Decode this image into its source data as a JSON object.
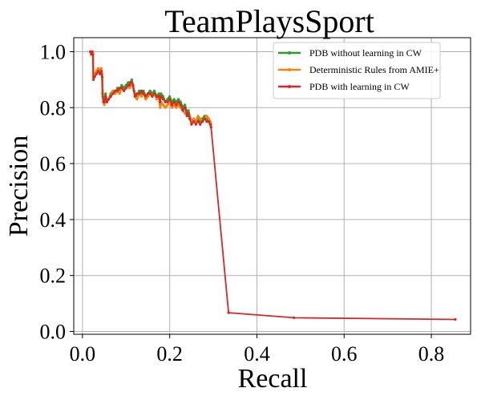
{
  "chart_data": {
    "type": "line",
    "title": "TeamPlaysSport",
    "xlabel": "Recall",
    "ylabel": "Precision",
    "xlim": [
      -0.02,
      0.89
    ],
    "ylim": [
      -0.01,
      1.05
    ],
    "x_ticks": [
      0.0,
      0.2,
      0.4,
      0.6,
      0.8
    ],
    "y_ticks": [
      0.0,
      0.2,
      0.4,
      0.6,
      0.8,
      1.0
    ],
    "x_tick_labels": [
      "0.0",
      "0.2",
      "0.4",
      "0.6",
      "0.8"
    ],
    "y_tick_labels": [
      "0.0",
      "0.2",
      "0.4",
      "0.6",
      "0.8",
      "1.0"
    ],
    "grid": true,
    "legend_position": "top-right",
    "series": [
      {
        "name": "PDB without learning in CW",
        "color": "#2ca02c",
        "x": [
          0.018,
          0.02,
          0.022,
          0.024,
          0.025,
          0.028,
          0.032,
          0.036,
          0.04,
          0.043,
          0.045,
          0.046,
          0.048,
          0.05,
          0.053,
          0.056,
          0.06,
          0.065,
          0.07,
          0.075,
          0.08,
          0.085,
          0.09,
          0.095,
          0.1,
          0.105,
          0.108,
          0.11,
          0.113,
          0.116,
          0.118,
          0.12,
          0.125,
          0.13,
          0.135,
          0.14,
          0.145,
          0.15,
          0.155,
          0.16,
          0.165,
          0.17,
          0.175,
          0.178,
          0.18,
          0.185,
          0.19,
          0.195,
          0.2,
          0.205,
          0.21,
          0.215,
          0.22,
          0.225,
          0.23,
          0.235,
          0.24,
          0.243,
          0.246,
          0.25,
          0.255,
          0.26,
          0.265,
          0.27,
          0.275,
          0.28,
          0.285,
          0.29,
          0.293,
          0.295
        ],
        "y": [
          1.0,
          1.0,
          0.99,
          1.0,
          0.91,
          0.92,
          0.93,
          0.94,
          0.93,
          0.94,
          0.92,
          0.86,
          0.82,
          0.83,
          0.85,
          0.82,
          0.83,
          0.85,
          0.86,
          0.85,
          0.87,
          0.86,
          0.88,
          0.87,
          0.88,
          0.89,
          0.88,
          0.89,
          0.9,
          0.88,
          0.86,
          0.85,
          0.84,
          0.86,
          0.85,
          0.86,
          0.84,
          0.85,
          0.86,
          0.85,
          0.86,
          0.84,
          0.85,
          0.83,
          0.85,
          0.84,
          0.82,
          0.83,
          0.84,
          0.82,
          0.83,
          0.82,
          0.83,
          0.82,
          0.8,
          0.81,
          0.78,
          0.79,
          0.77,
          0.75,
          0.76,
          0.75,
          0.76,
          0.75,
          0.76,
          0.77,
          0.76,
          0.75,
          0.74,
          0.73
        ]
      },
      {
        "name": "Deterministic Rules from AMIE+",
        "color": "#ff7f0e",
        "x": [
          0.018,
          0.02,
          0.022,
          0.024,
          0.025,
          0.028,
          0.032,
          0.036,
          0.04,
          0.043,
          0.045,
          0.046,
          0.048,
          0.05,
          0.053,
          0.056,
          0.06,
          0.065,
          0.07,
          0.075,
          0.08,
          0.085,
          0.09,
          0.095,
          0.1,
          0.105,
          0.108,
          0.11,
          0.113,
          0.116,
          0.118,
          0.12,
          0.125,
          0.13,
          0.135,
          0.14,
          0.145,
          0.15,
          0.155,
          0.16,
          0.165,
          0.17,
          0.175,
          0.178,
          0.18,
          0.185,
          0.19,
          0.195,
          0.2,
          0.205,
          0.21,
          0.215,
          0.22,
          0.225,
          0.23,
          0.235,
          0.24,
          0.243,
          0.246,
          0.25,
          0.255,
          0.26,
          0.265,
          0.27,
          0.275,
          0.28,
          0.285,
          0.29,
          0.293,
          0.295
        ],
        "y": [
          1.0,
          1.0,
          0.99,
          1.0,
          0.91,
          0.92,
          0.93,
          0.94,
          0.93,
          0.94,
          0.92,
          0.84,
          0.82,
          0.81,
          0.83,
          0.82,
          0.83,
          0.84,
          0.86,
          0.85,
          0.86,
          0.85,
          0.87,
          0.86,
          0.87,
          0.88,
          0.87,
          0.88,
          0.89,
          0.87,
          0.86,
          0.84,
          0.83,
          0.85,
          0.84,
          0.85,
          0.83,
          0.84,
          0.85,
          0.84,
          0.85,
          0.83,
          0.84,
          0.8,
          0.82,
          0.81,
          0.8,
          0.81,
          0.82,
          0.8,
          0.81,
          0.8,
          0.81,
          0.8,
          0.79,
          0.78,
          0.77,
          0.78,
          0.76,
          0.75,
          0.76,
          0.75,
          0.77,
          0.76,
          0.75,
          0.76,
          0.77,
          0.76,
          0.75,
          0.74
        ]
      },
      {
        "name": "PDB with learning in CW",
        "color": "#d62728",
        "x": [
          0.018,
          0.02,
          0.022,
          0.024,
          0.025,
          0.028,
          0.032,
          0.036,
          0.04,
          0.043,
          0.045,
          0.046,
          0.048,
          0.05,
          0.053,
          0.056,
          0.06,
          0.065,
          0.07,
          0.075,
          0.08,
          0.085,
          0.09,
          0.095,
          0.1,
          0.105,
          0.108,
          0.11,
          0.113,
          0.116,
          0.118,
          0.12,
          0.125,
          0.13,
          0.135,
          0.14,
          0.145,
          0.15,
          0.155,
          0.16,
          0.165,
          0.17,
          0.175,
          0.178,
          0.18,
          0.185,
          0.19,
          0.195,
          0.2,
          0.205,
          0.21,
          0.215,
          0.22,
          0.225,
          0.23,
          0.235,
          0.24,
          0.243,
          0.246,
          0.25,
          0.255,
          0.26,
          0.265,
          0.27,
          0.275,
          0.28,
          0.285,
          0.29,
          0.293,
          0.295,
          0.335,
          0.485,
          0.855
        ],
        "y": [
          1.0,
          0.99,
          1.0,
          0.99,
          0.9,
          0.91,
          0.92,
          0.93,
          0.92,
          0.93,
          0.91,
          0.85,
          0.82,
          0.82,
          0.84,
          0.82,
          0.83,
          0.84,
          0.85,
          0.86,
          0.86,
          0.87,
          0.87,
          0.86,
          0.87,
          0.88,
          0.88,
          0.89,
          0.89,
          0.88,
          0.86,
          0.84,
          0.85,
          0.85,
          0.86,
          0.85,
          0.84,
          0.85,
          0.85,
          0.84,
          0.85,
          0.84,
          0.84,
          0.82,
          0.84,
          0.83,
          0.82,
          0.82,
          0.83,
          0.81,
          0.82,
          0.81,
          0.82,
          0.81,
          0.79,
          0.8,
          0.77,
          0.78,
          0.76,
          0.74,
          0.75,
          0.74,
          0.75,
          0.74,
          0.75,
          0.76,
          0.75,
          0.75,
          0.74,
          0.73,
          0.067,
          0.049,
          0.043
        ]
      }
    ]
  }
}
